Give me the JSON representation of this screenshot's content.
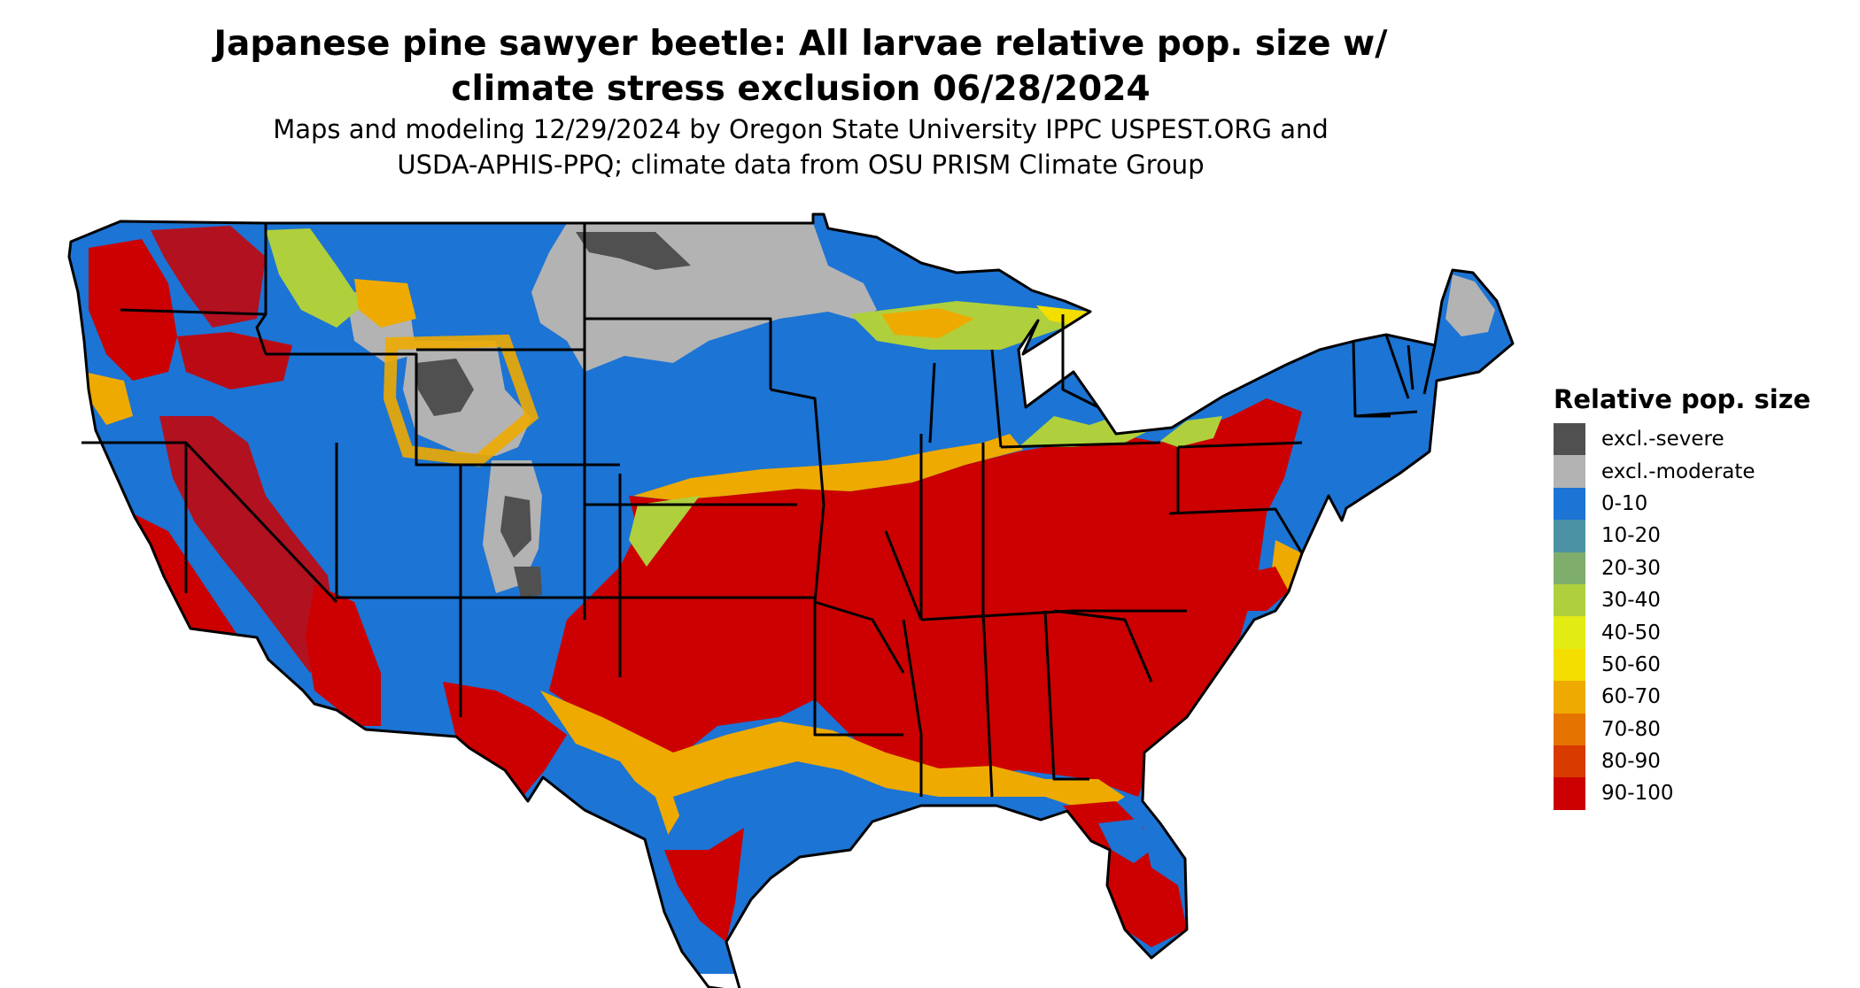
{
  "title": {
    "line1": "Japanese pine sawyer beetle: All larvae relative pop. size w/",
    "line2": "climate stress exclusion 06/28/2024"
  },
  "subtitle": {
    "line1": "Maps and modeling 12/29/2024 by Oregon State University IPPC USPEST.ORG and",
    "line2": "USDA-APHIS-PPQ; climate data from OSU PRISM Climate Group"
  },
  "legend": {
    "title": "Relative pop. size",
    "items": [
      {
        "label": "excl.-severe",
        "color": "#505050"
      },
      {
        "label": "excl.-moderate",
        "color": "#b3b3b3"
      },
      {
        "label": "0-10",
        "color": "#1c74d4"
      },
      {
        "label": "10-20",
        "color": "#4b93a4"
      },
      {
        "label": "20-30",
        "color": "#7fae6c"
      },
      {
        "label": "30-40",
        "color": "#afd03c"
      },
      {
        "label": "40-50",
        "color": "#e3eb14"
      },
      {
        "label": "50-60",
        "color": "#f3de00"
      },
      {
        "label": "60-70",
        "color": "#eeaa00"
      },
      {
        "label": "70-80",
        "color": "#e57300"
      },
      {
        "label": "80-90",
        "color": "#d83a00"
      },
      {
        "label": "90-100",
        "color": "#cc0000"
      }
    ]
  }
}
